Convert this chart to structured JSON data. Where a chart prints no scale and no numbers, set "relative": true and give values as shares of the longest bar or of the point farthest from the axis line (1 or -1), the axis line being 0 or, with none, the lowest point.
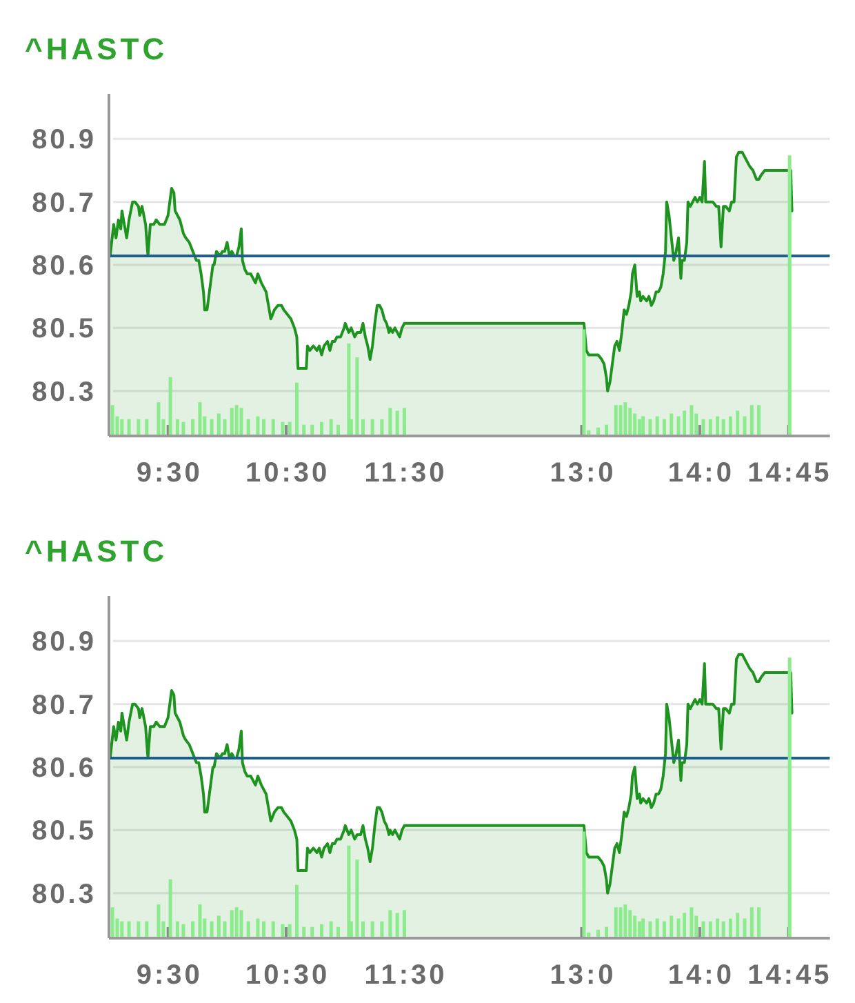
{
  "chart_data": [
    {
      "type": "area",
      "title": "^HASTC",
      "xlim": [
        9,
        15.1
      ],
      "xticks": [
        {
          "value": 9.5,
          "label": "9:30"
        },
        {
          "value": 10.5,
          "label": "10:30"
        },
        {
          "value": 11.5,
          "label": "11:30"
        },
        {
          "value": 13,
          "label": "13:0"
        },
        {
          "value": 14,
          "label": "14:0"
        },
        {
          "value": 14.75,
          "label": "14:45"
        }
      ],
      "ylim": [
        80.22,
        80.98
      ],
      "yticks": [
        {
          "value": 80.32,
          "label": "80.3"
        },
        {
          "value": 80.46,
          "label": "80.5"
        },
        {
          "value": 80.6,
          "label": "80.6"
        },
        {
          "value": 80.74,
          "label": "80.7"
        },
        {
          "value": 80.88,
          "label": "80.9"
        }
      ],
      "grid": "y",
      "ref_lines": [
        {
          "axis": "y",
          "value": 80.62,
          "color": "#1f5f8f"
        }
      ],
      "color": "#1f9320",
      "x": [
        9.01,
        9.04,
        9.06,
        9.08,
        9.1,
        9.11,
        9.13,
        9.15,
        9.17,
        9.2,
        9.22,
        9.25,
        9.26,
        9.28,
        9.31,
        9.33,
        9.35,
        9.38,
        9.4,
        9.43,
        9.47,
        9.5,
        9.53,
        9.55,
        9.56,
        9.6,
        9.63,
        9.65,
        9.68,
        9.71,
        9.74,
        9.76,
        9.78,
        9.8,
        9.81,
        9.83,
        9.85,
        9.87,
        9.88,
        9.89,
        9.91,
        9.94,
        9.96,
        9.98,
        10.0,
        10.02,
        10.04,
        10.06,
        10.08,
        10.1,
        10.12,
        10.13,
        10.15,
        10.17,
        10.2,
        10.22,
        10.24,
        10.26,
        10.29,
        10.31,
        10.33,
        10.35,
        10.37,
        10.4,
        10.43,
        10.46,
        10.48,
        10.51,
        10.54,
        10.57,
        10.59,
        10.6,
        10.67,
        10.68,
        10.7,
        10.73,
        10.76,
        10.78,
        10.8,
        10.82,
        10.85,
        10.87,
        10.89,
        10.91,
        10.93,
        10.96,
        10.99,
        11.0,
        11.03,
        11.05,
        11.08,
        11.1,
        11.13,
        11.15,
        11.17,
        11.19,
        11.21,
        11.23,
        11.25,
        11.27,
        11.29,
        11.31,
        11.33,
        11.35,
        11.37,
        11.38,
        11.4,
        11.42,
        11.44,
        11.46,
        11.48,
        11.5,
        11.52,
        13.0,
        13.02,
        13.04,
        13.06,
        13.09,
        13.12,
        13.14,
        13.17,
        13.19,
        13.21,
        13.22,
        13.24,
        13.26,
        13.28,
        13.3,
        13.32,
        13.34,
        13.36,
        13.38,
        13.4,
        13.42,
        13.43,
        13.45,
        13.47,
        13.49,
        13.5,
        13.52,
        13.55,
        13.57,
        13.59,
        13.61,
        13.63,
        13.65,
        13.67,
        13.69,
        13.71,
        13.72,
        13.74,
        13.76,
        13.78,
        13.8,
        13.82,
        13.84,
        13.85,
        13.87,
        13.89,
        13.9,
        13.92,
        13.94,
        13.96,
        13.98,
        14.0,
        14.02,
        14.04,
        14.05,
        14.08,
        14.11,
        14.14,
        14.16,
        14.18,
        14.2,
        14.22,
        14.25,
        14.27,
        14.29,
        14.31,
        14.33,
        14.36,
        14.38,
        14.4,
        14.42,
        14.45,
        14.48,
        14.5,
        14.52,
        14.55,
        14.77,
        14.78
      ],
      "values": [
        80.62,
        80.69,
        80.66,
        80.7,
        80.68,
        80.72,
        80.69,
        80.66,
        80.7,
        80.74,
        80.74,
        80.73,
        80.71,
        80.73,
        80.69,
        80.62,
        80.69,
        80.69,
        80.7,
        80.69,
        80.69,
        80.71,
        80.77,
        80.76,
        80.72,
        80.7,
        80.67,
        80.66,
        80.65,
        80.63,
        80.61,
        80.61,
        80.58,
        80.54,
        80.5,
        80.5,
        80.54,
        80.58,
        80.6,
        80.6,
        80.63,
        80.62,
        80.63,
        80.63,
        80.65,
        80.62,
        80.63,
        80.62,
        80.62,
        80.64,
        80.68,
        80.61,
        80.59,
        80.58,
        80.58,
        80.57,
        80.56,
        80.58,
        80.56,
        80.55,
        80.54,
        80.51,
        80.48,
        80.5,
        80.51,
        80.51,
        80.5,
        80.49,
        80.48,
        80.46,
        80.44,
        80.37,
        80.37,
        80.42,
        80.41,
        80.42,
        80.41,
        80.42,
        80.4,
        80.42,
        80.43,
        80.41,
        80.43,
        80.43,
        80.44,
        80.44,
        80.46,
        80.47,
        80.45,
        80.46,
        80.44,
        80.45,
        80.45,
        80.47,
        80.44,
        80.42,
        80.39,
        80.42,
        80.47,
        80.51,
        80.51,
        80.5,
        80.48,
        80.47,
        80.45,
        80.46,
        80.45,
        80.46,
        80.45,
        80.44,
        80.46,
        80.47,
        80.47,
        80.47,
        80.47,
        80.41,
        80.4,
        80.4,
        80.4,
        80.4,
        80.39,
        80.38,
        80.35,
        80.32,
        80.34,
        80.38,
        80.42,
        80.43,
        80.41,
        80.45,
        80.5,
        80.49,
        80.51,
        80.54,
        80.58,
        80.6,
        80.53,
        80.54,
        80.52,
        80.53,
        80.52,
        80.53,
        80.51,
        80.52,
        80.54,
        80.54,
        80.55,
        80.58,
        80.63,
        80.74,
        80.71,
        80.66,
        80.61,
        80.63,
        80.66,
        80.57,
        80.61,
        80.61,
        80.65,
        80.74,
        80.73,
        80.74,
        80.75,
        80.74,
        80.75,
        80.74,
        80.83,
        80.74,
        80.74,
        80.74,
        80.73,
        80.73,
        80.64,
        80.73,
        80.73,
        80.72,
        80.74,
        80.74,
        80.84,
        80.85,
        80.85,
        80.84,
        80.83,
        80.82,
        80.81,
        80.79,
        80.79,
        80.8,
        80.81,
        80.81,
        80.72
      ]
    },
    {
      "type": "bar",
      "relative": true,
      "xlim": [
        9,
        15.1
      ],
      "color": "#8ceb8c",
      "x": [
        9.03,
        9.07,
        9.11,
        9.17,
        9.25,
        9.32,
        9.42,
        9.46,
        9.52,
        9.58,
        9.63,
        9.71,
        9.77,
        9.81,
        9.87,
        9.93,
        9.98,
        10.04,
        10.08,
        10.12,
        10.18,
        10.26,
        10.31,
        10.39,
        10.47,
        10.53,
        10.59,
        10.65,
        10.72,
        10.8,
        10.88,
        10.94,
        11.03,
        11.05,
        11.1,
        11.15,
        11.23,
        11.31,
        11.38,
        11.44,
        11.5,
        13.02,
        13.06,
        13.14,
        13.21,
        13.29,
        13.33,
        13.37,
        13.41,
        13.45,
        13.49,
        13.52,
        13.58,
        13.64,
        13.7,
        13.76,
        13.82,
        13.87,
        13.93,
        13.97,
        14.03,
        14.09,
        14.15,
        14.2,
        14.26,
        14.32,
        14.38,
        14.44,
        14.5,
        14.76
      ],
      "values": [
        0.11,
        0.07,
        0.06,
        0.06,
        0.06,
        0.06,
        0.12,
        0.06,
        0.21,
        0.06,
        0.05,
        0.06,
        0.12,
        0.07,
        0.06,
        0.08,
        0.06,
        0.1,
        0.11,
        0.1,
        0.06,
        0.07,
        0.06,
        0.06,
        0.05,
        0.05,
        0.19,
        0.04,
        0.04,
        0.05,
        0.06,
        0.04,
        0.33,
        0.06,
        0.28,
        0.06,
        0.06,
        0.06,
        0.1,
        0.09,
        0.1,
        0.38,
        0.02,
        0.03,
        0.04,
        0.11,
        0.11,
        0.12,
        0.1,
        0.08,
        0.06,
        0.07,
        0.06,
        0.07,
        0.06,
        0.08,
        0.07,
        0.09,
        0.11,
        0.08,
        0.06,
        0.06,
        0.07,
        0.06,
        0.07,
        0.09,
        0.07,
        0.11,
        0.11,
        1
      ]
    },
    {
      "type": "area",
      "title": "^HASTC",
      "xlim": [
        9,
        15.1
      ],
      "xticks": [
        {
          "value": 9.5,
          "label": "9:30"
        },
        {
          "value": 10.5,
          "label": "10:30"
        },
        {
          "value": 11.5,
          "label": "11:30"
        },
        {
          "value": 13,
          "label": "13:0"
        },
        {
          "value": 14,
          "label": "14:0"
        },
        {
          "value": 14.75,
          "label": "14:45"
        }
      ],
      "ylim": [
        80.22,
        80.98
      ],
      "yticks": [
        {
          "value": 80.32,
          "label": "80.3"
        },
        {
          "value": 80.46,
          "label": "80.5"
        },
        {
          "value": 80.6,
          "label": "80.6"
        },
        {
          "value": 80.74,
          "label": "80.7"
        },
        {
          "value": 80.88,
          "label": "80.9"
        }
      ],
      "grid": "y",
      "ref_lines": [
        {
          "axis": "y",
          "value": 80.62,
          "color": "#1f5f8f"
        }
      ],
      "color": "#1f9320",
      "x": [
        9.01,
        9.04,
        9.06,
        9.08,
        9.1,
        9.11,
        9.13,
        9.15,
        9.17,
        9.2,
        9.22,
        9.25,
        9.26,
        9.28,
        9.31,
        9.33,
        9.35,
        9.38,
        9.4,
        9.43,
        9.47,
        9.5,
        9.53,
        9.55,
        9.56,
        9.6,
        9.63,
        9.65,
        9.68,
        9.71,
        9.74,
        9.76,
        9.78,
        9.8,
        9.81,
        9.83,
        9.85,
        9.87,
        9.88,
        9.89,
        9.91,
        9.94,
        9.96,
        9.98,
        10.0,
        10.02,
        10.04,
        10.06,
        10.08,
        10.1,
        10.12,
        10.13,
        10.15,
        10.17,
        10.2,
        10.22,
        10.24,
        10.26,
        10.29,
        10.31,
        10.33,
        10.35,
        10.37,
        10.4,
        10.43,
        10.46,
        10.48,
        10.51,
        10.54,
        10.57,
        10.59,
        10.6,
        10.67,
        10.68,
        10.7,
        10.73,
        10.76,
        10.78,
        10.8,
        10.82,
        10.85,
        10.87,
        10.89,
        10.91,
        10.93,
        10.96,
        10.99,
        11.0,
        11.03,
        11.05,
        11.08,
        11.1,
        11.13,
        11.15,
        11.17,
        11.19,
        11.21,
        11.23,
        11.25,
        11.27,
        11.29,
        11.31,
        11.33,
        11.35,
        11.37,
        11.38,
        11.4,
        11.42,
        11.44,
        11.46,
        11.48,
        11.5,
        11.52,
        13.0,
        13.02,
        13.04,
        13.06,
        13.09,
        13.12,
        13.14,
        13.17,
        13.19,
        13.21,
        13.22,
        13.24,
        13.26,
        13.28,
        13.3,
        13.32,
        13.34,
        13.36,
        13.38,
        13.4,
        13.42,
        13.43,
        13.45,
        13.47,
        13.49,
        13.5,
        13.52,
        13.55,
        13.57,
        13.59,
        13.61,
        13.63,
        13.65,
        13.67,
        13.69,
        13.71,
        13.72,
        13.74,
        13.76,
        13.78,
        13.8,
        13.82,
        13.84,
        13.85,
        13.87,
        13.89,
        13.9,
        13.92,
        13.94,
        13.96,
        13.98,
        14.0,
        14.02,
        14.04,
        14.05,
        14.08,
        14.11,
        14.14,
        14.16,
        14.18,
        14.2,
        14.22,
        14.25,
        14.27,
        14.29,
        14.31,
        14.33,
        14.36,
        14.38,
        14.4,
        14.42,
        14.45,
        14.48,
        14.5,
        14.52,
        14.55,
        14.77,
        14.78
      ],
      "values": [
        80.62,
        80.69,
        80.66,
        80.7,
        80.68,
        80.72,
        80.69,
        80.66,
        80.7,
        80.74,
        80.74,
        80.73,
        80.71,
        80.73,
        80.69,
        80.62,
        80.69,
        80.69,
        80.7,
        80.69,
        80.69,
        80.71,
        80.77,
        80.76,
        80.72,
        80.7,
        80.67,
        80.66,
        80.65,
        80.63,
        80.61,
        80.61,
        80.58,
        80.54,
        80.5,
        80.5,
        80.54,
        80.58,
        80.6,
        80.6,
        80.63,
        80.62,
        80.63,
        80.63,
        80.65,
        80.62,
        80.63,
        80.62,
        80.62,
        80.64,
        80.68,
        80.61,
        80.59,
        80.58,
        80.58,
        80.57,
        80.56,
        80.58,
        80.56,
        80.55,
        80.54,
        80.51,
        80.48,
        80.5,
        80.51,
        80.51,
        80.5,
        80.49,
        80.48,
        80.46,
        80.44,
        80.37,
        80.37,
        80.42,
        80.41,
        80.42,
        80.41,
        80.42,
        80.4,
        80.42,
        80.43,
        80.41,
        80.43,
        80.43,
        80.44,
        80.44,
        80.46,
        80.47,
        80.45,
        80.46,
        80.44,
        80.45,
        80.45,
        80.47,
        80.44,
        80.42,
        80.39,
        80.42,
        80.47,
        80.51,
        80.51,
        80.5,
        80.48,
        80.47,
        80.45,
        80.46,
        80.45,
        80.46,
        80.45,
        80.44,
        80.46,
        80.47,
        80.47,
        80.47,
        80.47,
        80.41,
        80.4,
        80.4,
        80.4,
        80.4,
        80.39,
        80.38,
        80.35,
        80.32,
        80.34,
        80.38,
        80.42,
        80.43,
        80.41,
        80.45,
        80.5,
        80.49,
        80.51,
        80.54,
        80.58,
        80.6,
        80.53,
        80.54,
        80.52,
        80.53,
        80.52,
        80.53,
        80.51,
        80.52,
        80.54,
        80.54,
        80.55,
        80.58,
        80.63,
        80.74,
        80.71,
        80.66,
        80.61,
        80.63,
        80.66,
        80.57,
        80.61,
        80.61,
        80.65,
        80.74,
        80.73,
        80.74,
        80.75,
        80.74,
        80.75,
        80.74,
        80.83,
        80.74,
        80.74,
        80.74,
        80.73,
        80.73,
        80.64,
        80.73,
        80.73,
        80.72,
        80.74,
        80.74,
        80.84,
        80.85,
        80.85,
        80.84,
        80.83,
        80.82,
        80.81,
        80.79,
        80.79,
        80.8,
        80.81,
        80.81,
        80.72
      ]
    },
    {
      "type": "bar",
      "relative": true,
      "xlim": [
        9,
        15.1
      ],
      "color": "#8ceb8c",
      "x": [
        9.03,
        9.07,
        9.11,
        9.17,
        9.25,
        9.32,
        9.42,
        9.46,
        9.52,
        9.58,
        9.63,
        9.71,
        9.77,
        9.81,
        9.87,
        9.93,
        9.98,
        10.04,
        10.08,
        10.12,
        10.18,
        10.26,
        10.31,
        10.39,
        10.47,
        10.53,
        10.59,
        10.65,
        10.72,
        10.8,
        10.88,
        10.94,
        11.03,
        11.05,
        11.1,
        11.15,
        11.23,
        11.31,
        11.38,
        11.44,
        11.5,
        13.02,
        13.06,
        13.14,
        13.21,
        13.29,
        13.33,
        13.37,
        13.41,
        13.45,
        13.49,
        13.52,
        13.58,
        13.64,
        13.7,
        13.76,
        13.82,
        13.87,
        13.93,
        13.97,
        14.03,
        14.09,
        14.15,
        14.2,
        14.26,
        14.32,
        14.38,
        14.44,
        14.5,
        14.76
      ],
      "values": [
        0.11,
        0.07,
        0.06,
        0.06,
        0.06,
        0.06,
        0.12,
        0.06,
        0.21,
        0.06,
        0.05,
        0.06,
        0.12,
        0.07,
        0.06,
        0.08,
        0.06,
        0.1,
        0.11,
        0.1,
        0.06,
        0.07,
        0.06,
        0.06,
        0.05,
        0.05,
        0.19,
        0.04,
        0.04,
        0.05,
        0.06,
        0.04,
        0.33,
        0.06,
        0.28,
        0.06,
        0.06,
        0.06,
        0.1,
        0.09,
        0.1,
        0.38,
        0.02,
        0.03,
        0.04,
        0.11,
        0.11,
        0.12,
        0.1,
        0.08,
        0.06,
        0.07,
        0.06,
        0.07,
        0.06,
        0.08,
        0.07,
        0.09,
        0.11,
        0.08,
        0.06,
        0.06,
        0.07,
        0.06,
        0.07,
        0.09,
        0.07,
        0.11,
        0.11,
        1
      ]
    }
  ]
}
